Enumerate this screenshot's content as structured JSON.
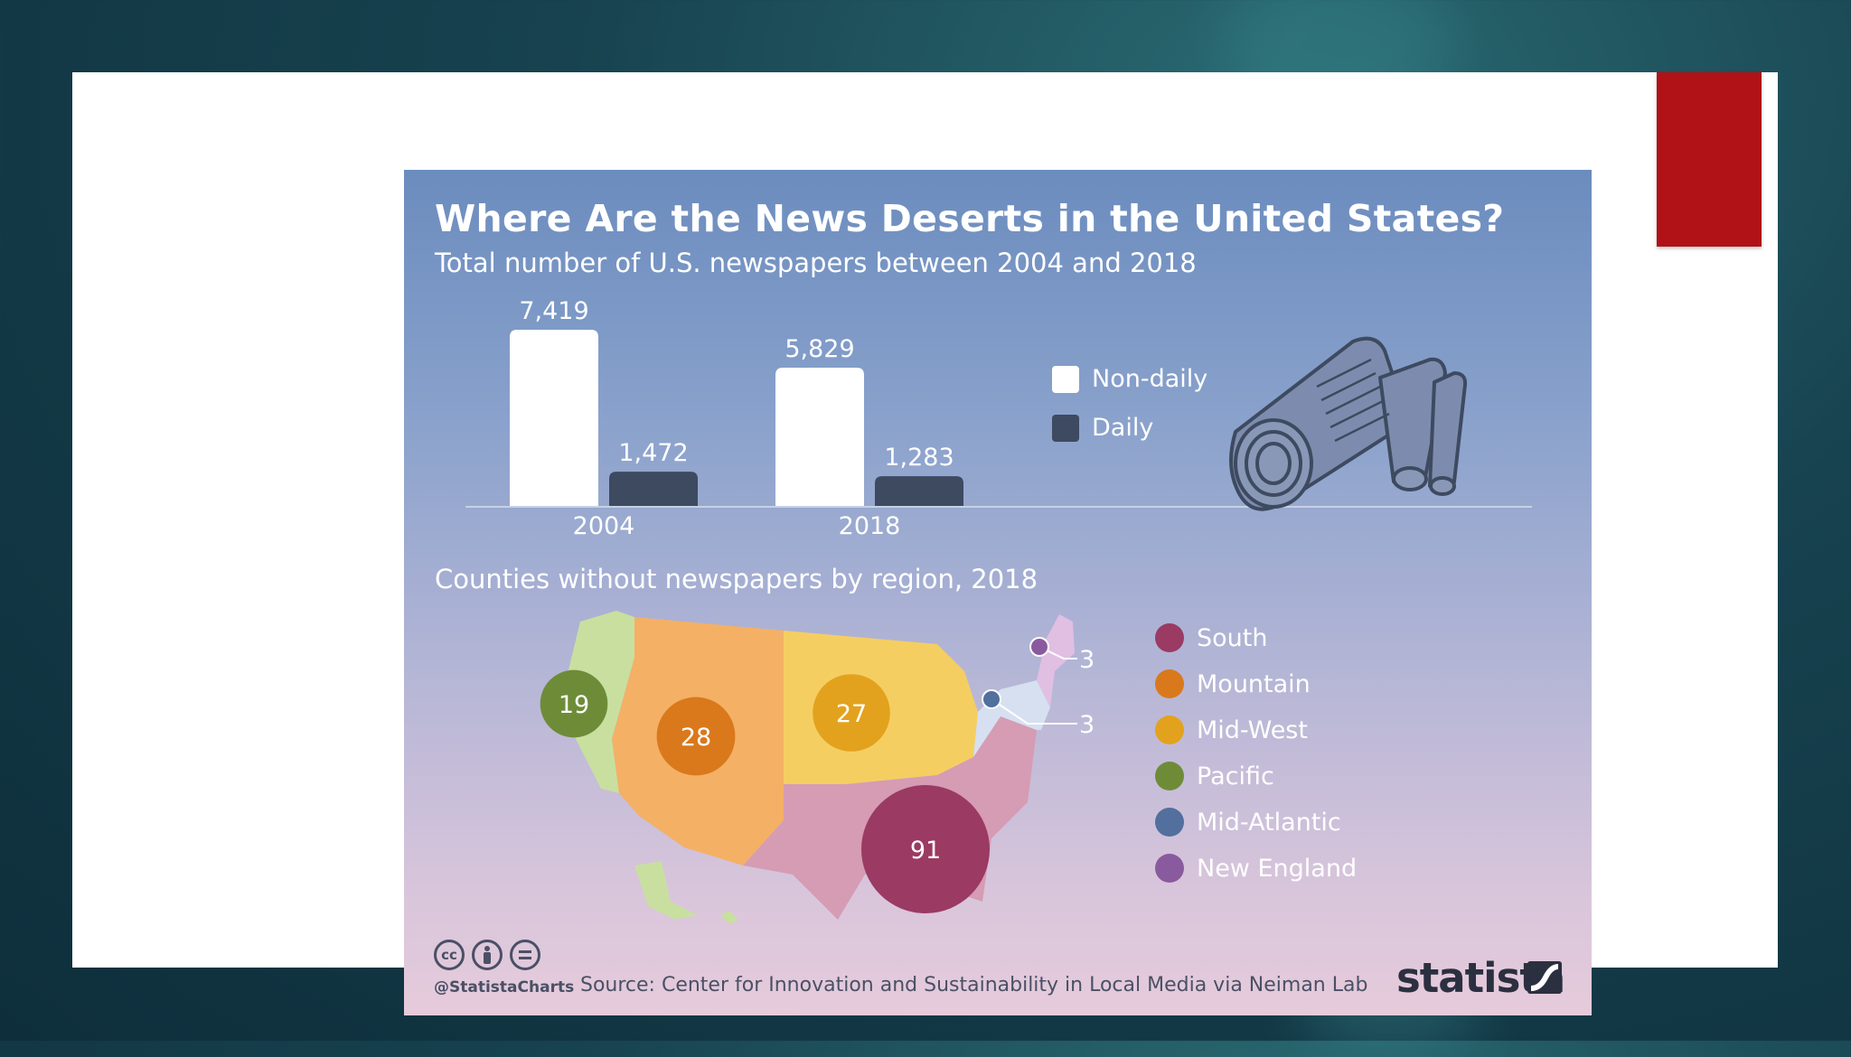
{
  "infographic": {
    "title": "Where Are the News Deserts in the United States?",
    "subtitle": "Total number of U.S. newspapers between 2004 and 2018",
    "map_title": "Counties without newspapers by region, 2018",
    "source": "Source: Center for Innovation and Sustainability in Local Media via Neiman Lab",
    "handle": "@StatistaCharts",
    "brand": "statista",
    "cc_icons": [
      "cc-icon",
      "by-icon",
      "nd-icon"
    ]
  },
  "colors": {
    "non_daily": "#ffffff",
    "daily": "#3d4a60",
    "south": "#9b3a63",
    "mountain": "#d9791c",
    "midwest": "#e3a21d",
    "pacific": "#6e8c38",
    "mid_atlantic": "#526f9e",
    "new_england": "#8a5a9e",
    "slide_accent": "#b01217"
  },
  "chart_data": [
    {
      "type": "bar",
      "categories": [
        "2004",
        "2018"
      ],
      "series": [
        {
          "name": "Non-daily",
          "values": [
            7419,
            5829
          ]
        },
        {
          "name": "Daily",
          "values": [
            1472,
            1283
          ]
        }
      ],
      "data_labels": [
        [
          "7,419",
          "5,829"
        ],
        [
          "1,472",
          "1,283"
        ]
      ],
      "legend": [
        "Non-daily",
        "Daily"
      ],
      "ylim": [
        0,
        7419
      ]
    },
    {
      "type": "scatter",
      "title": "Counties without newspapers by region, 2018",
      "regions": [
        {
          "name": "South",
          "value": 91,
          "label": "91"
        },
        {
          "name": "Mountain",
          "value": 28,
          "label": "28"
        },
        {
          "name": "Mid-West",
          "value": 27,
          "label": "27"
        },
        {
          "name": "Pacific",
          "value": 19,
          "label": "19"
        },
        {
          "name": "Mid-Atlantic",
          "value": 3,
          "label": "3"
        },
        {
          "name": "New England",
          "value": 3,
          "label": "3"
        }
      ]
    }
  ]
}
